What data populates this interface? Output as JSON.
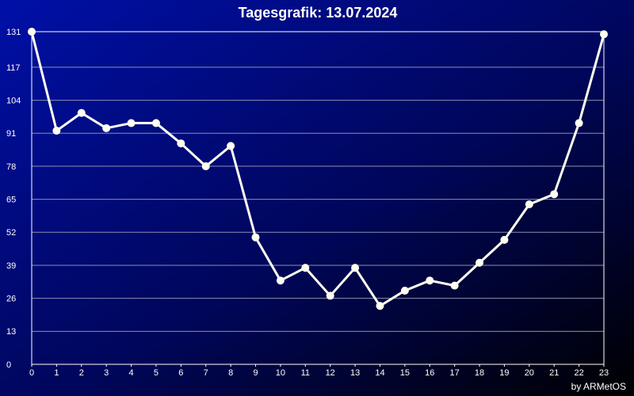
{
  "chart_data": {
    "type": "line",
    "title": "Tagesgrafik: 13.07.2024",
    "credit": "by ARMetOS",
    "x": [
      0,
      1,
      2,
      3,
      4,
      5,
      6,
      7,
      8,
      9,
      10,
      11,
      12,
      13,
      14,
      15,
      16,
      17,
      18,
      19,
      20,
      21,
      22,
      23
    ],
    "series": [
      {
        "color": "#fffff0",
        "values": [
          131,
          92,
          99,
          93,
          95,
          95,
          87,
          78,
          86,
          50,
          33,
          38,
          27,
          38,
          23,
          29,
          33,
          31,
          40,
          49,
          63,
          67,
          95,
          130
        ]
      }
    ],
    "xlim": [
      0,
      23
    ],
    "xticks": [
      0,
      1,
      2,
      3,
      4,
      5,
      6,
      7,
      8,
      9,
      10,
      11,
      12,
      13,
      14,
      15,
      16,
      17,
      18,
      19,
      20,
      21,
      22,
      23
    ],
    "ylim": [
      0,
      131
    ],
    "yticks": [
      0,
      13,
      26,
      39,
      52,
      65,
      78,
      91,
      104,
      117,
      131
    ],
    "grid": true
  }
}
